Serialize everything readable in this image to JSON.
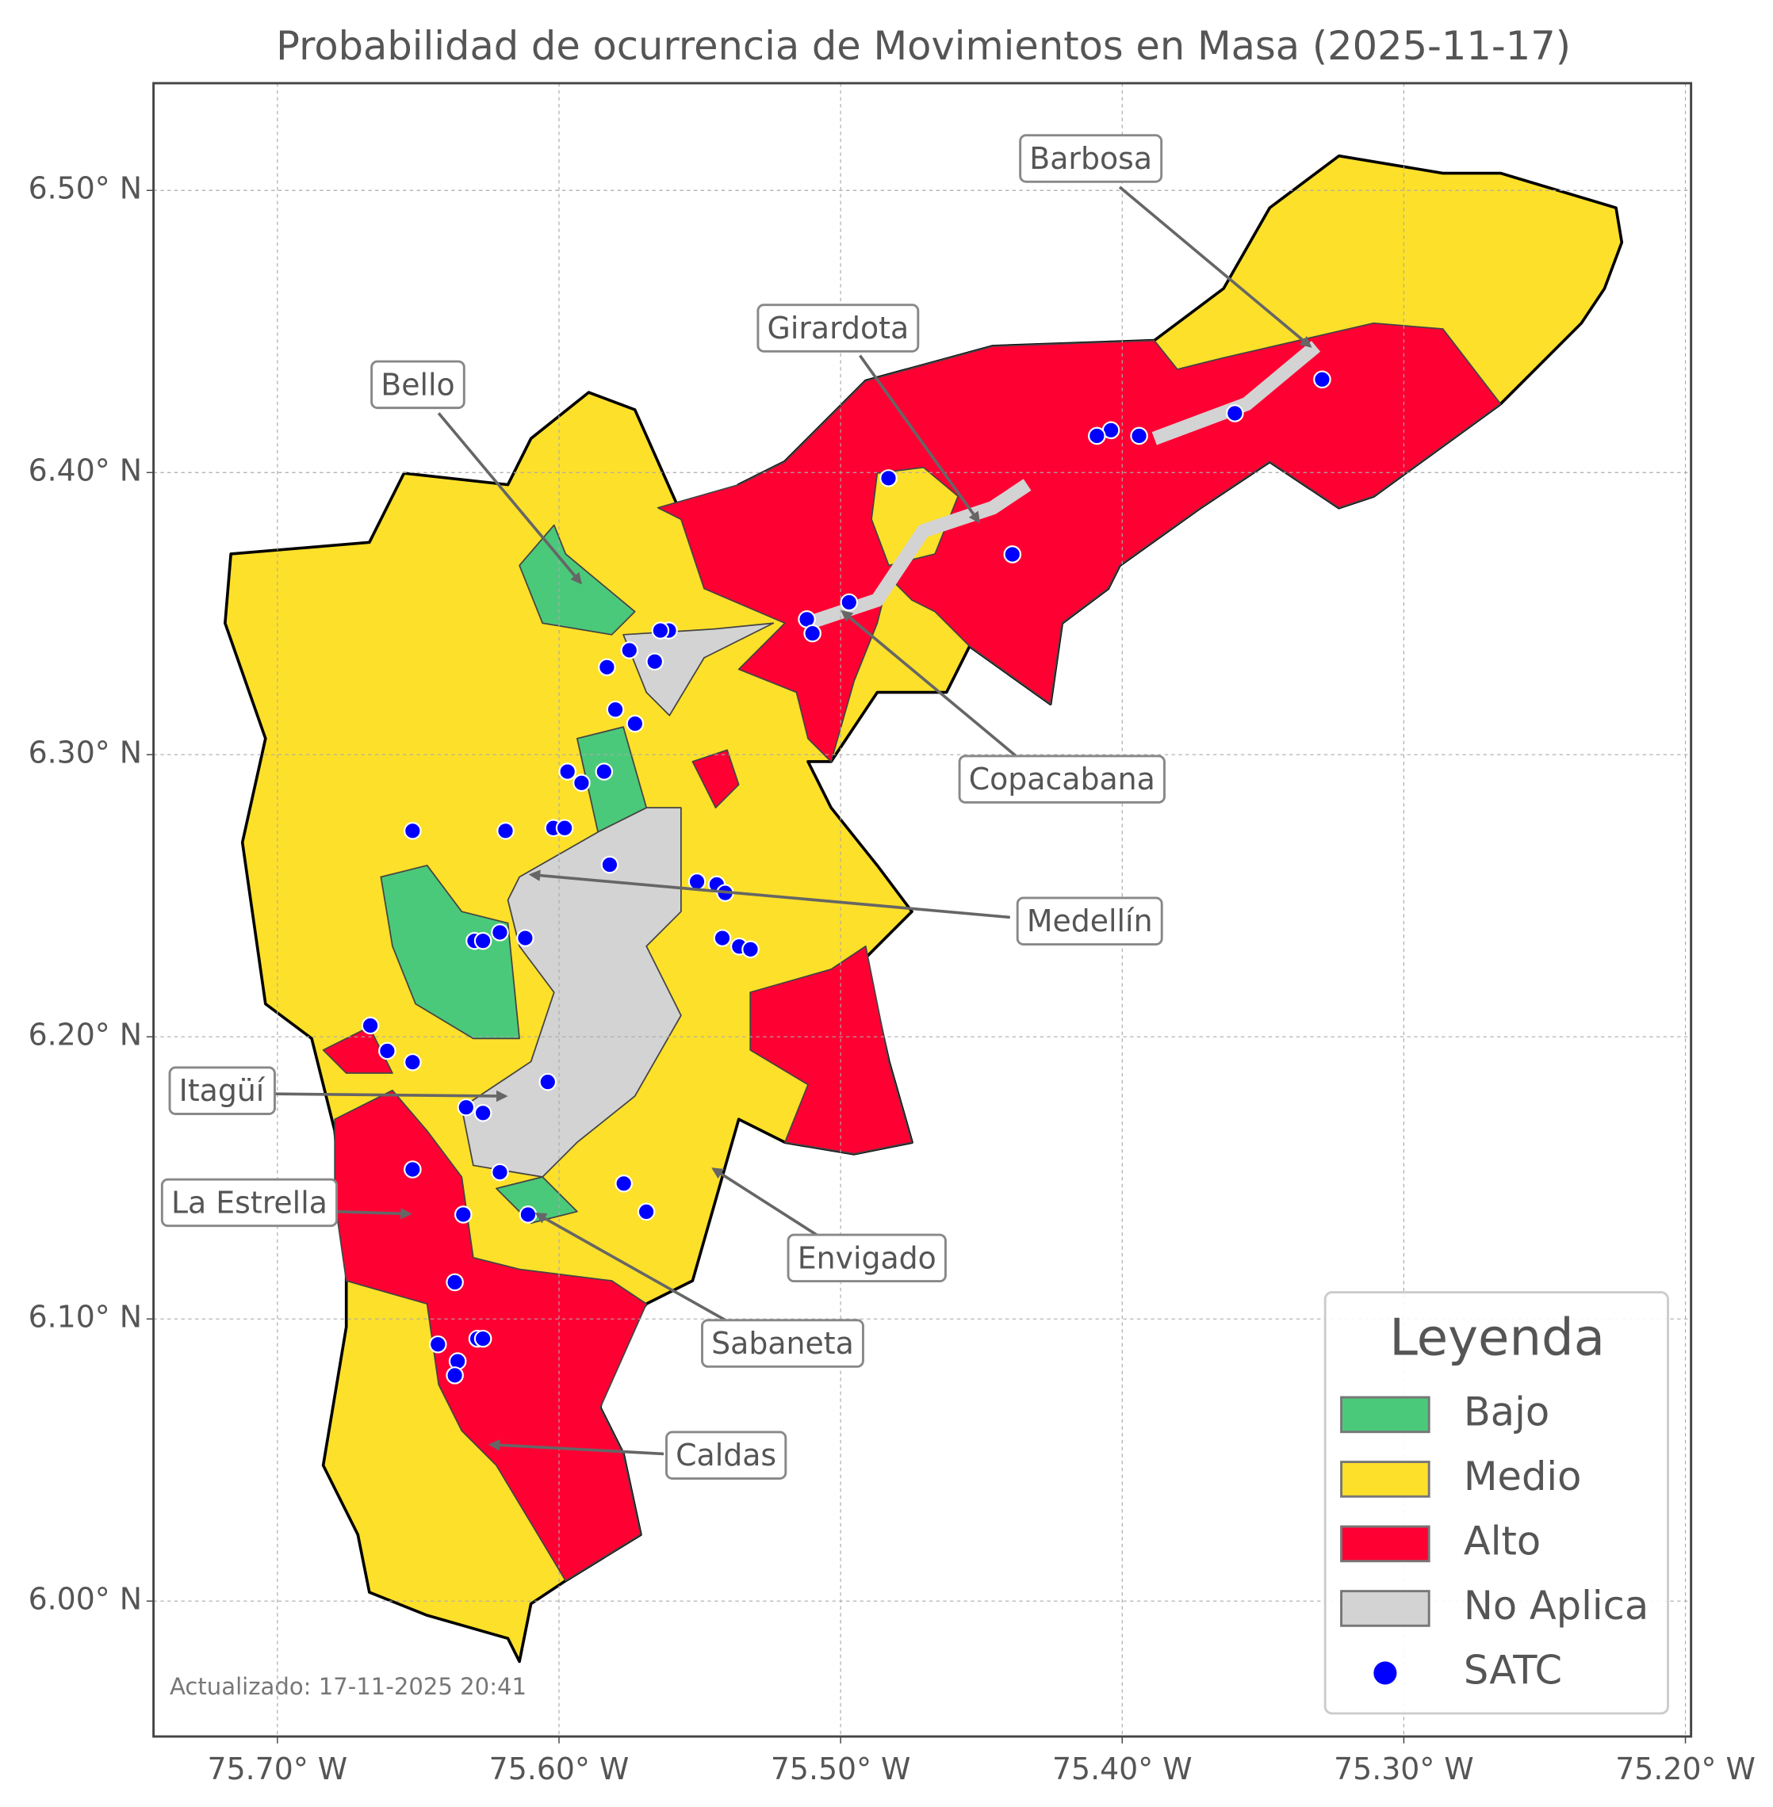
{
  "chart_data": {
    "type": "map",
    "title": "Probabilidad de ocurrencia de Movimientos en Masa (2025-11-17)",
    "xlim": [
      -75.744,
      -75.198
    ],
    "ylim": [
      5.952,
      6.538
    ],
    "xticks": [
      {
        "value": -75.7,
        "label": "75.70° W"
      },
      {
        "value": -75.6,
        "label": "75.60° W"
      },
      {
        "value": -75.5,
        "label": "75.50° W"
      },
      {
        "value": -75.4,
        "label": "75.40° W"
      },
      {
        "value": -75.3,
        "label": "75.30° W"
      },
      {
        "value": -75.2,
        "label": "75.20° W"
      }
    ],
    "yticks": [
      {
        "value": 6.0,
        "label": "6.00° N"
      },
      {
        "value": 6.1,
        "label": "6.10° N"
      },
      {
        "value": 6.2,
        "label": "6.20° N"
      },
      {
        "value": 6.3,
        "label": "6.30° N"
      },
      {
        "value": 6.4,
        "label": "6.40° N"
      },
      {
        "value": 6.5,
        "label": "6.50° N"
      }
    ],
    "grid": true,
    "annotations": [
      "Barbosa",
      "Girardota",
      "Bello",
      "Copacabana",
      "Medellín",
      "Itagüí",
      "La Estrella",
      "Envigado",
      "Sabaneta",
      "Caldas"
    ],
    "legend": {
      "title": "Leyenda",
      "items": [
        {
          "label": "Bajo",
          "color": "#4bc97a"
        },
        {
          "label": "Medio",
          "color": "#fde02a"
        },
        {
          "label": "Alto",
          "color": "#ff0033"
        },
        {
          "label": "No Aplica",
          "color": "#d3d3d3"
        }
      ]
    },
    "stations": {
      "name": "SATC",
      "color": "#0000ff",
      "lon": [
        -75.329,
        -75.36,
        -75.394,
        -75.404,
        -75.409,
        -75.483,
        -75.439,
        -75.497,
        -75.512,
        -75.51,
        -75.561,
        -75.564,
        -75.575,
        -75.566,
        -75.583,
        -75.58,
        -75.573,
        -75.597,
        -75.584,
        -75.592,
        -75.619,
        -75.652,
        -75.602,
        -75.598,
        -75.582,
        -75.551,
        -75.544,
        -75.541,
        -75.542,
        -75.536,
        -75.532,
        -75.612,
        -75.621,
        -75.63,
        -75.627,
        -75.667,
        -75.661,
        -75.652,
        -75.604,
        -75.633,
        -75.627,
        -75.621,
        -75.652,
        -75.577,
        -75.569,
        -75.634,
        -75.611,
        -75.637,
        -75.643,
        -75.629,
        -75.627,
        -75.636,
        -75.637
      ],
      "lat": [
        6.433,
        6.421,
        6.413,
        6.415,
        6.413,
        6.398,
        6.371,
        6.354,
        6.348,
        6.343,
        6.344,
        6.344,
        6.337,
        6.333,
        6.331,
        6.316,
        6.311,
        6.294,
        6.294,
        6.29,
        6.273,
        6.273,
        6.274,
        6.274,
        6.261,
        6.255,
        6.254,
        6.251,
        6.235,
        6.232,
        6.231,
        6.235,
        6.237,
        6.234,
        6.234,
        6.204,
        6.195,
        6.191,
        6.184,
        6.175,
        6.173,
        6.152,
        6.153,
        6.148,
        6.138,
        6.137,
        6.137,
        6.113,
        6.091,
        6.093,
        6.093,
        6.085,
        6.08
      ]
    },
    "footnote": "Actualizado: 17-11-2025 20:41"
  }
}
